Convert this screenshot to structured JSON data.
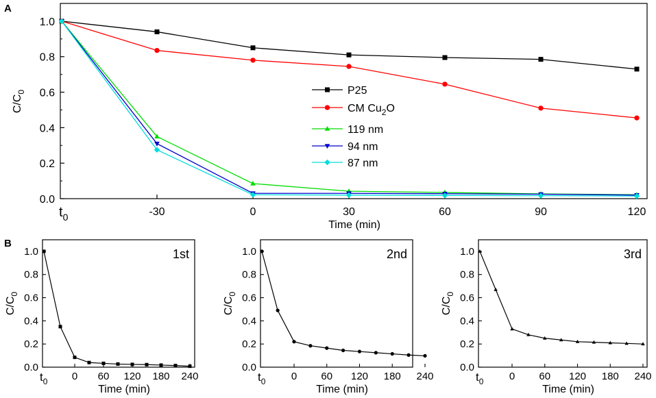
{
  "panel_labels": {
    "a": "A",
    "b": "B"
  },
  "panel_a": {
    "ylabel": "C/C0",
    "ylabel_main": "C/C",
    "ylabel_sub": "0",
    "xlabel": "Time (min)",
    "x_tick_labels": [
      "-30",
      "0",
      "30",
      "60",
      "90",
      "120"
    ],
    "y_tick_labels": [
      "0.0",
      "0.2",
      "0.4",
      "0.6",
      "0.8",
      "1.0"
    ],
    "t0_label": {
      "main": "t",
      "sub": "0"
    },
    "legend": [
      {
        "series": 0,
        "parts": [
          {
            "t": "P25",
            "sub": false
          }
        ]
      },
      {
        "series": 1,
        "parts": [
          {
            "t": "CM Cu",
            "sub": false
          },
          {
            "t": "2",
            "sub": true
          },
          {
            "t": "O",
            "sub": false
          }
        ]
      },
      {
        "series": 2,
        "parts": [
          {
            "t": "119 nm",
            "sub": false
          }
        ]
      },
      {
        "series": 3,
        "parts": [
          {
            "t": "94 nm",
            "sub": false
          }
        ]
      },
      {
        "series": 4,
        "parts": [
          {
            "t": "87 nm",
            "sub": false
          }
        ]
      }
    ]
  },
  "panel_b": {
    "ylabel_main": "C/C",
    "ylabel_sub": "0",
    "xlabel": "Time (min)",
    "x_tick_labels": [
      "0",
      "60",
      "120",
      "180",
      "240"
    ],
    "y_tick_labels": [
      "0.0",
      "0.2",
      "0.4",
      "0.6",
      "0.8",
      "1.0"
    ],
    "t0_label": {
      "main": "t",
      "sub": "0"
    },
    "run_labels": [
      "1st",
      "2nd",
      "3rd"
    ]
  },
  "colors": {
    "P25": "#000000",
    "CM Cu2O": "#ff0000",
    "119 nm": "#00dd00",
    "94 nm": "#0000cc",
    "87 nm": "#00dddd",
    "cycle": "#000000"
  },
  "chart_data": [
    {
      "type": "line",
      "title": "A",
      "xlabel": "Time (min)",
      "ylabel": "C/C0",
      "x": [
        "t0",
        -30,
        0,
        30,
        60,
        90,
        120
      ],
      "ylim": [
        0,
        1.1
      ],
      "series": [
        {
          "name": "P25",
          "marker": "square",
          "values": [
            1.0,
            0.94,
            0.85,
            0.81,
            0.795,
            0.785,
            0.73
          ]
        },
        {
          "name": "CM Cu2O",
          "marker": "circle",
          "values": [
            1.0,
            0.835,
            0.78,
            0.745,
            0.645,
            0.51,
            0.455
          ]
        },
        {
          "name": "119 nm",
          "marker": "triangle-up",
          "values": [
            1.0,
            0.35,
            0.085,
            0.042,
            0.035,
            0.027,
            0.022
          ]
        },
        {
          "name": "94 nm",
          "marker": "triangle-down",
          "values": [
            1.0,
            0.31,
            0.03,
            0.03,
            0.028,
            0.025,
            0.02
          ]
        },
        {
          "name": "87 nm",
          "marker": "diamond",
          "values": [
            1.0,
            0.275,
            0.022,
            0.02,
            0.018,
            0.017,
            0.015
          ]
        }
      ]
    },
    {
      "type": "line",
      "title": "1st",
      "xlabel": "Time (min)",
      "ylabel": "C/C0",
      "x": [
        "t0",
        -30,
        0,
        30,
        60,
        90,
        120,
        150,
        180,
        210,
        240
      ],
      "ylim": [
        0,
        1.1
      ],
      "series": [
        {
          "name": "1st",
          "marker": "square",
          "values": [
            1.0,
            0.35,
            0.085,
            0.04,
            0.033,
            0.027,
            0.024,
            0.022,
            0.018,
            0.014,
            0.008
          ]
        }
      ]
    },
    {
      "type": "line",
      "title": "2nd",
      "xlabel": "Time (min)",
      "ylabel": "C/C0",
      "x": [
        "t0",
        -30,
        0,
        30,
        60,
        90,
        120,
        150,
        180,
        210,
        240
      ],
      "ylim": [
        0,
        1.1
      ],
      "series": [
        {
          "name": "2nd",
          "marker": "circle",
          "values": [
            1.0,
            0.49,
            0.22,
            0.185,
            0.165,
            0.145,
            0.135,
            0.125,
            0.115,
            0.105,
            0.098
          ]
        }
      ]
    },
    {
      "type": "line",
      "title": "3rd",
      "xlabel": "Time (min)",
      "ylabel": "C/C0",
      "x": [
        "t0",
        -30,
        0,
        30,
        60,
        90,
        120,
        150,
        180,
        210,
        240
      ],
      "ylim": [
        0,
        1.1
      ],
      "series": [
        {
          "name": "3rd",
          "marker": "triangle-up",
          "values": [
            1.0,
            0.67,
            0.33,
            0.28,
            0.25,
            0.235,
            0.22,
            0.215,
            0.21,
            0.205,
            0.2
          ]
        }
      ]
    }
  ]
}
